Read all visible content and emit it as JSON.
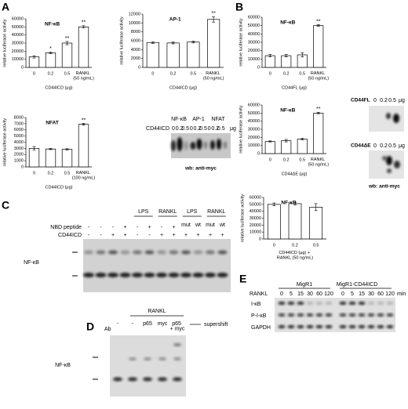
{
  "chart_data": [
    {
      "type": "bar",
      "title": "NF-κB",
      "ylabel": "relative luciferase activity",
      "xlabel": "CD44ICD (μg)",
      "categories": [
        "0",
        "0.2",
        "0.5",
        "RANKL (50 ng/mL)"
      ],
      "values": [
        13000,
        18000,
        30000,
        50000
      ],
      "errors": [
        1500,
        1000,
        2000,
        1500
      ],
      "sig_labels": [
        null,
        "*",
        "**",
        "**"
      ],
      "ylim": [
        0,
        60000
      ],
      "yticks": [
        0,
        10000,
        20000,
        30000,
        40000,
        50000,
        60000
      ],
      "color": "#ffffff"
    },
    {
      "type": "bar",
      "title": "AP-1",
      "ylabel": "relative luciferase activity",
      "xlabel": "CD44ICD (μg)",
      "categories": [
        "0",
        "0.2",
        "0.5",
        "RANKL (50 ng/mL)"
      ],
      "values": [
        5600,
        5500,
        5700,
        10800
      ],
      "errors": [
        200,
        200,
        200,
        600
      ],
      "sig_labels": [
        null,
        null,
        null,
        "**"
      ],
      "ylim": [
        0,
        12000
      ],
      "yticks": [
        0,
        2000,
        4000,
        6000,
        8000,
        10000,
        12000
      ],
      "color": "#ffffff"
    },
    {
      "type": "bar",
      "title": "NFAT",
      "ylabel": "relative luciferase activity",
      "xlabel": "CD44ICD (μg)",
      "categories": [
        "0",
        "0.2",
        "0.5",
        "RANKL (100 ng/mL)"
      ],
      "values": [
        3000,
        2900,
        2850,
        6900
      ],
      "errors": [
        300,
        100,
        100,
        150
      ],
      "sig_labels": [
        null,
        null,
        null,
        "**"
      ],
      "ylim": [
        0,
        8000
      ],
      "yticks": [
        0,
        1000,
        2000,
        3000,
        4000,
        5000,
        6000,
        7000,
        8000
      ],
      "color": "#ffffff"
    },
    {
      "type": "bar",
      "title": "NF-κB",
      "ylabel": "relative luciferase activity",
      "xlabel": "CD44FL (μg)",
      "categories": [
        "0",
        "0.2",
        "0.5",
        "RANKL (50 ng/mL)"
      ],
      "values": [
        14000,
        14000,
        15000,
        50000
      ],
      "errors": [
        1500,
        1500,
        2500,
        1000
      ],
      "sig_labels": [
        null,
        null,
        null,
        "**"
      ],
      "ylim": [
        0,
        60000
      ],
      "yticks": [
        0,
        10000,
        20000,
        30000,
        40000,
        50000,
        60000
      ],
      "color": "#ffffff"
    },
    {
      "type": "bar",
      "title": "NF-κB",
      "ylabel": "relative luciferase activity",
      "xlabel": "CD44ΔE (μg)",
      "categories": [
        "0",
        "0.2",
        "0.5",
        "RANKL (50 ng/mL)"
      ],
      "values": [
        15000,
        16000,
        18000,
        50000
      ],
      "errors": [
        700,
        1500,
        1000,
        1000
      ],
      "sig_labels": [
        null,
        null,
        null,
        "**"
      ],
      "ylim": [
        0,
        60000
      ],
      "yticks": [
        0,
        10000,
        20000,
        30000,
        40000,
        50000,
        60000
      ],
      "color": "#ffffff"
    },
    {
      "type": "bar",
      "title": "NF-κB",
      "ylabel": "relative luciferase activity",
      "xlabel": "CD44ICD (μg) + RANKL (50 ng/mL)",
      "categories": [
        "0",
        "0.2",
        "0.5"
      ],
      "values": [
        50000,
        51000,
        46000
      ],
      "errors": [
        2000,
        2000,
        5000
      ],
      "sig_labels": [
        null,
        null,
        null
      ],
      "ylim": [
        0,
        60000
      ],
      "yticks": [
        0,
        10000,
        20000,
        30000,
        40000,
        50000,
        60000
      ],
      "color": "#ffffff"
    }
  ],
  "panel_labels": [
    "A",
    "B",
    "C",
    "D",
    "E"
  ],
  "blot_a": {
    "targets": [
      "NF-κB",
      "AP-1",
      "NFAT"
    ],
    "row_label": "CD44ICD",
    "lanes": [
      "0",
      "0.2",
      "0.5",
      "0",
      "0.2",
      "0.5",
      "0",
      "0.2",
      "0.5"
    ],
    "unit": "μg",
    "caption": "wb: anti-myc"
  },
  "blot_b": {
    "rows": [
      {
        "label": "CD44FL",
        "lanes": [
          "0",
          "0.2",
          "0.5"
        ],
        "unit": "μg"
      },
      {
        "label": "CD44ΔE",
        "lanes": [
          "0",
          "0.2",
          "0.5"
        ],
        "unit": "μg"
      }
    ],
    "caption": "wb: anti-myc"
  },
  "gel_c": {
    "groups": [
      "LPS",
      "RANKL",
      "LPS",
      "RANKL"
    ],
    "row1_label": "NBD peptide",
    "row1": [
      "-",
      "-",
      "-",
      "+",
      "-",
      "+",
      "-",
      "+"
    ],
    "mut_wt": [
      "mut",
      "wt",
      "mut",
      "wt"
    ],
    "row2_label": "CD44ICD",
    "row2": [
      "-",
      "-",
      "+",
      "+",
      "-",
      "-",
      "+",
      "+",
      "+",
      "+",
      "+",
      "+"
    ],
    "band_label": "NF-κB"
  },
  "gel_d": {
    "group": "RANKL",
    "ab_label": "Ab",
    "lanes": [
      "-",
      "-",
      "p65",
      "myc",
      "p65 + myc"
    ],
    "supershift": "supershift",
    "band_label": "NF-κB"
  },
  "blot_e": {
    "groups": [
      "MigR1",
      "MigR1-CD44ICD"
    ],
    "row_label": "RANKL",
    "times": [
      "0",
      "5",
      "15",
      "30",
      "60",
      "120"
    ],
    "unit": "min",
    "rows": [
      "I-κB",
      "P-I-κB",
      "GAPDH"
    ]
  }
}
